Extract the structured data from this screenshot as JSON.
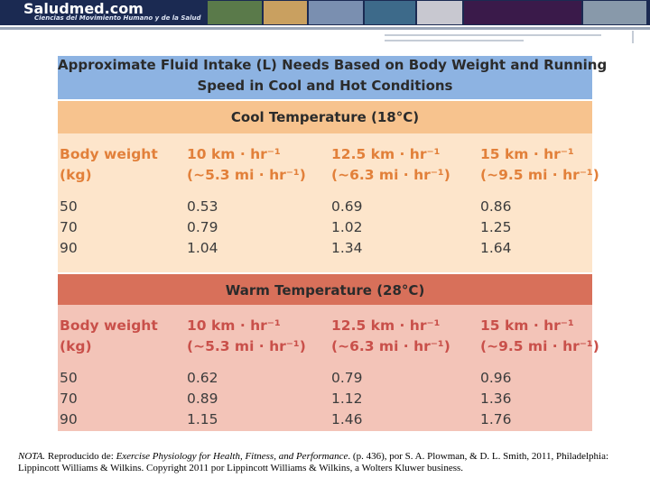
{
  "header": {
    "logo": "Saludmed.com",
    "tagline": "Ciencias del Movimiento Humano y de la Salud"
  },
  "table": {
    "title": [
      "Approximate Fluid Intake (L) Needs Based on Body Weight and Running",
      "Speed in Cool and Hot Conditions"
    ],
    "sections": [
      {
        "heading": "Cool Temperature (18°C)",
        "columns": [
          [
            "Body weight",
            "(kg)"
          ],
          [
            "10 km · hr⁻¹",
            "(~5.3 mi · hr⁻¹)"
          ],
          [
            "12.5 km · hr⁻¹",
            "(~6.3 mi · hr⁻¹)"
          ],
          [
            "15 km · hr⁻¹",
            "(~9.5 mi · hr⁻¹)"
          ]
        ],
        "rows": [
          [
            "50",
            "0.53",
            "0.69",
            "0.86"
          ],
          [
            "70",
            "0.79",
            "1.02",
            "1.25"
          ],
          [
            "90",
            "1.04",
            "1.34",
            "1.64"
          ]
        ]
      },
      {
        "heading": "Warm Temperature (28°C)",
        "columns": [
          [
            "Body weight",
            "(kg)"
          ],
          [
            "10 km · hr⁻¹",
            "(~5.3 mi · hr⁻¹)"
          ],
          [
            "12.5 km · hr⁻¹",
            "(~6.3 mi · hr⁻¹)"
          ],
          [
            "15 km · hr⁻¹",
            "(~9.5 mi · hr⁻¹)"
          ]
        ],
        "rows": [
          [
            "50",
            "0.62",
            "0.79",
            "0.96"
          ],
          [
            "70",
            "0.89",
            "1.12",
            "1.36"
          ],
          [
            "90",
            "1.15",
            "1.46",
            "1.76"
          ]
        ]
      }
    ]
  },
  "note": [
    "NOTA.",
    " Reproducido de: ",
    "Exercise Physiology for Health, Fitness, and Performance",
    ". (p. 436), por S. A. Plowman, & D. L. Smith, 2011, Philadelphia: Lippincott Williams & Wilkins. Copyright 2011  por Lippincott Williams & Wilkins, a Wolters Kluwer business."
  ]
}
